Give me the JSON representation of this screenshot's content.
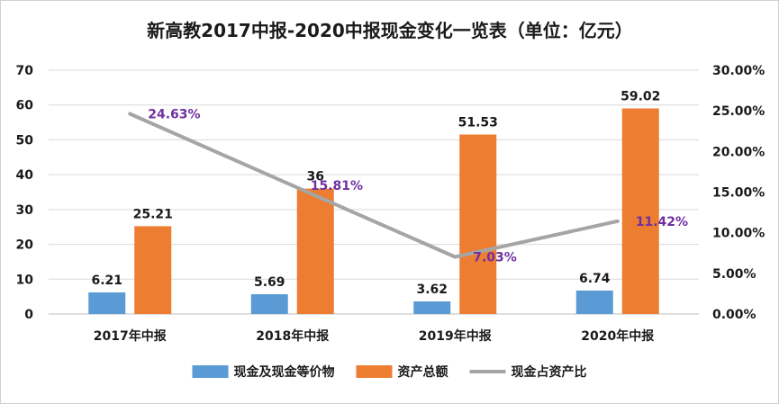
{
  "chart_data": {
    "type": "bar",
    "title": "新高教2017中报-2020中报现金变化一览表（单位：亿元）",
    "categories": [
      "2017年中报",
      "2018年中报",
      "2019年中报",
      "2020年中报"
    ],
    "series": [
      {
        "name": "现金及现金等价物",
        "type": "bar",
        "axis": "left",
        "color": "#5B9BD5",
        "values": [
          6.21,
          5.69,
          3.62,
          6.74
        ],
        "labels": [
          "6.21",
          "5.69",
          "3.62",
          "6.74"
        ]
      },
      {
        "name": "资产总额",
        "type": "bar",
        "axis": "left",
        "color": "#ED7D31",
        "values": [
          25.21,
          36,
          51.53,
          59.02
        ],
        "labels": [
          "25.21",
          "36",
          "51.53",
          "59.02"
        ]
      },
      {
        "name": "现金占资产比",
        "type": "line",
        "axis": "right",
        "color": "#A5A5A5",
        "label_color": "#7030A0",
        "values": [
          24.63,
          15.81,
          7.03,
          11.42
        ],
        "labels": [
          "24.63%",
          "15.81%",
          "7.03%",
          "11.42%"
        ]
      }
    ],
    "y_left": {
      "min": 0,
      "max": 70,
      "ticks": [
        0,
        10,
        20,
        30,
        40,
        50,
        60,
        70
      ],
      "tick_labels": [
        "0",
        "10",
        "20",
        "30",
        "40",
        "50",
        "60",
        "70"
      ]
    },
    "y_right": {
      "min": 0,
      "max": 30,
      "ticks": [
        0,
        5,
        10,
        15,
        20,
        25,
        30
      ],
      "tick_labels": [
        "0.00%",
        "5.00%",
        "10.00%",
        "15.00%",
        "20.00%",
        "25.00%",
        "30.00%"
      ]
    },
    "grid": true,
    "legend_position": "bottom"
  }
}
